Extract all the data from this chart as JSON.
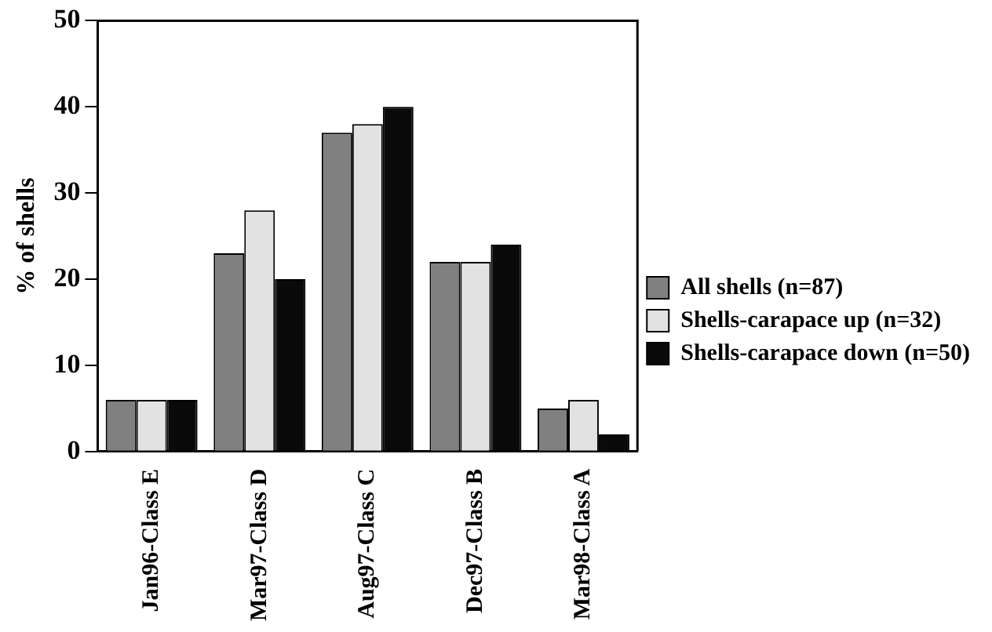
{
  "chart_data": {
    "type": "bar",
    "ylabel": "% of shells",
    "categories": [
      "Jan96-Class E",
      "Mar97-Class D",
      "Aug97-Class C",
      "Dec97-Class B",
      "Mar98-Class A"
    ],
    "series": [
      {
        "name": "All shells (n=87)",
        "color": "#808080",
        "values": [
          6,
          23,
          37,
          22,
          5
        ]
      },
      {
        "name": "Shells-carapace up (n=32)",
        "color": "#e2e2e2",
        "values": [
          6,
          28,
          38,
          22,
          6
        ]
      },
      {
        "name": "Shells-carapace down (n=50)",
        "color": "#0a0a0a",
        "values": [
          6,
          20,
          40,
          24,
          2
        ]
      }
    ],
    "ylim": [
      0,
      50
    ],
    "yticks": [
      0,
      10,
      20,
      30,
      40,
      50
    ],
    "grid": false,
    "legend": "right"
  }
}
